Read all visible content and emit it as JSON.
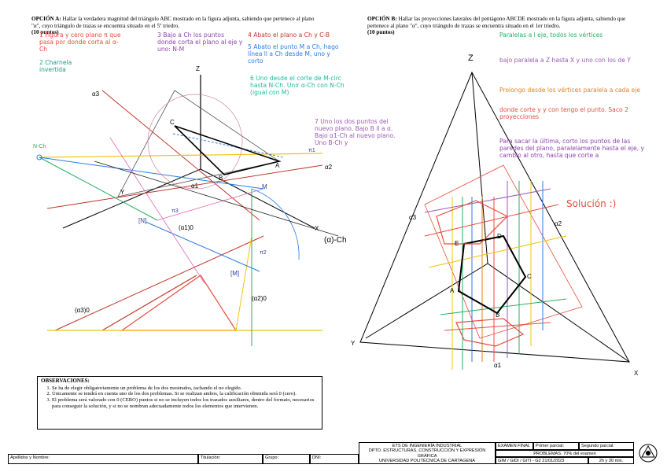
{
  "optA": {
    "heading": "OPCIÓN A:",
    "text": "Hallar la verdadera magnitud del triángulo ABC mostrado en la figura adjunta, sabiendo que pertenece al plano \"α\", cuyo triángulo de trazas se encuentra situado en el 5º triedro.",
    "points": "(10 puntos)"
  },
  "optB": {
    "heading": "OPCIÓN B:",
    "text": "Hallar las proyecciones laterales del pentágono ABCDE mostrado en la figura adjunta, sabiendo que pertenece al plano \"α\", cuyo triángulo de trazas se encuentra situado en el 1er triedro.",
    "points": "(10 puntos)"
  },
  "notesA": {
    "n1": "1 Figura y cero plano π que pasa por donde corta al α-Ch",
    "n2": "2 Charnela invertida",
    "n3": "3 Bajo a Ch los puntos donde corta el plano al eje y uno: N-M",
    "n4": "4 Abato el plano a Ch y C-B",
    "n5": "5 Abato el punto M a Ch, hago línea ll a Ch desde M, uno y corto",
    "n6": "6 Uno desde el corte de M-circ hasta N-Ch. Unir α-Ch con N-Ch (igual con M)",
    "n7": "7 Uno los dos puntos del nuevo plano. Bajo B ll a α. Bajo α1-Ch al nuevo plano. Uno B-Ch y"
  },
  "notesB": {
    "n1": "Paralelas a l eje, todos los vértices",
    "n2": "bajo paralela a Z hasta X y uno con los de Y",
    "n3": "Prolongo desde los vértices paralela a cada eje",
    "n4": "donde corte y y con tengo el punto. Saco 2 proyecciones",
    "n5": "Para sacar la última, corto los puntos de las paredes del plano, paralelamente hasta el eje, y cambio al otro, hasta que corte a",
    "sol": "Solución :)"
  },
  "labelsA": {
    "z": "Z",
    "y": "Y",
    "a3": "α3",
    "a2": "α2",
    "a1": "α1",
    "a1o": "(α1)0",
    "a2o": "(α2)0",
    "a3o": "(α3)0",
    "ach": "(α)-Ch",
    "nch": "N-Ch",
    "n": "[N]",
    "m": "[M]",
    "M": "M",
    "A": "A",
    "B": "B",
    "C": "C",
    "pi1": "π1",
    "pi2": "π2",
    "pi3": "π3",
    "x": "X"
  },
  "labelsB": {
    "z": "Z",
    "y": "Y",
    "x": "X",
    "a1": "α1",
    "a2": "α2",
    "a3": "α3",
    "A": "A",
    "B": "B",
    "C": "C",
    "D": "D",
    "E": "E"
  },
  "observations": {
    "title": "OBSERVACIONES:",
    "items": [
      "Se ha de elegir obligatoriamente un problema de los dos mostrados, tachando el no elegido.",
      "Únicamente se tendrá en cuenta uno de los dos problemas. Si se realizan ambos, la calificación obtenida será 0 (cero).",
      "El problema será valorado con 0 (CERO) puntos si no se incluyen todos los trazados auxiliares, dentro del formato, necesarios para conseguir la solución, y si no se nombran adecuadamente todos los elementos que intervienen."
    ]
  },
  "footer": {
    "apellidos": "Apellidos y Nombre:",
    "titulacion": "Titulación:",
    "grupo": "Grupo:",
    "dni": "DNI:",
    "school": "ETS DE INGENIERÍA INDUSTRIAL",
    "dept": "DPTO. ESTRUCTURAS, CONSTRUCCIÓN Y EXPRESIÓN GRÁFICA",
    "uni": "UNIVERSIDAD POLITÉCNICA DE CARTAGENA",
    "exam": "EXAMEN FINAL",
    "p1": "Primer parcial:",
    "p2": "Segundo parcial:",
    "problems": "PROBLEMAS. 70% del examen",
    "code": "GIM / GIDI / GITI - G2 21/01/2023",
    "time": "2h y 30 min."
  }
}
